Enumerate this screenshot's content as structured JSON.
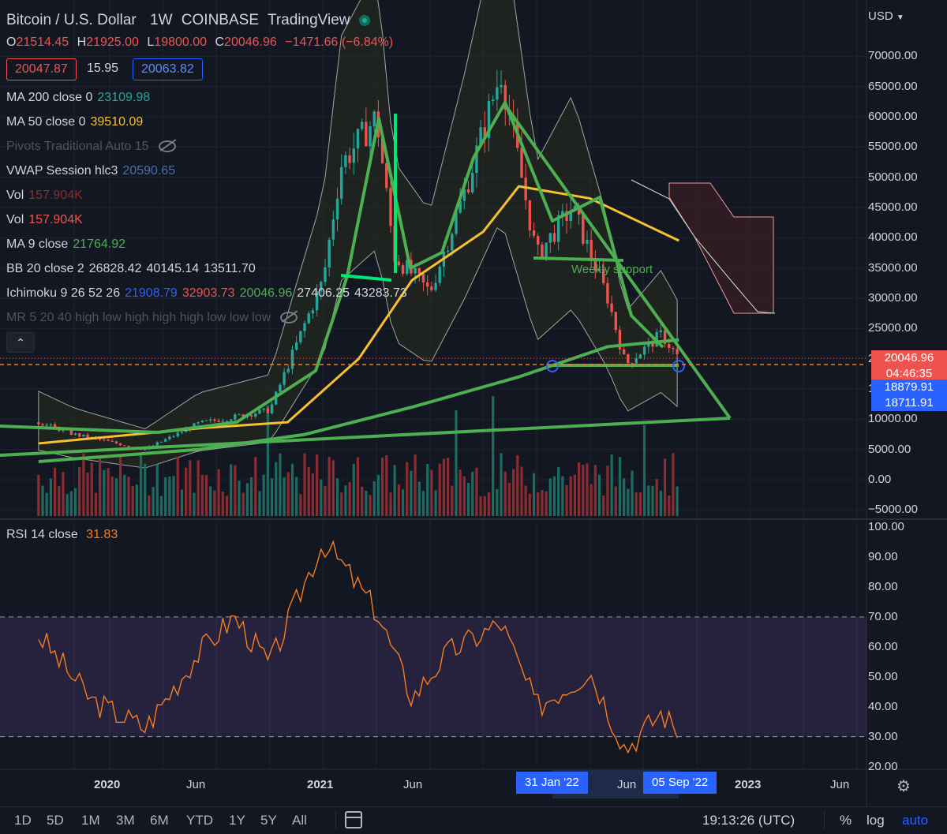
{
  "header": {
    "symbol": "Bitcoin / U.S. Dollar",
    "interval": "1W",
    "exchange": "COINBASE",
    "platform": "TradingView",
    "currency": "USD",
    "ohlc": {
      "o_label": "O",
      "o": "21514.45",
      "h_label": "H",
      "h": "21925.00",
      "l_label": "L",
      "l": "19800.00",
      "c_label": "C",
      "c": "20046.96",
      "change": "−1471.66 (−6.84%)"
    },
    "bid": "20047.87",
    "spread": "15.95",
    "ask": "20063.82"
  },
  "indicators": [
    {
      "name": "MA 200 close 0",
      "values": [
        "23109.98"
      ],
      "colors": [
        "#26a69a"
      ]
    },
    {
      "name": "MA 50 close 0",
      "values": [
        "39510.09"
      ],
      "colors": [
        "#f7c12e"
      ]
    },
    {
      "name": "Pivots Traditional Auto 15",
      "values": [],
      "colors": [],
      "hidden": true
    },
    {
      "name": "VWAP Session hlc3",
      "values": [
        "20590.65"
      ],
      "colors": [
        "#4a6fa5"
      ]
    },
    {
      "name": "Vol",
      "values": [
        "157.904K"
      ],
      "colors": [
        "#8b2c32"
      ]
    },
    {
      "name": "Vol",
      "values": [
        "157.904K"
      ],
      "colors": [
        "#ef5350"
      ]
    },
    {
      "name": "MA 9 close",
      "values": [
        "21764.92"
      ],
      "colors": [
        "#4caf50"
      ]
    },
    {
      "name": "BB 20 close 2",
      "values": [
        "26828.42",
        "40145.14",
        "13511.70"
      ],
      "colors": [
        "#d1d4dc",
        "#d1d4dc",
        "#d1d4dc"
      ]
    },
    {
      "name": "Ichimoku 9 26 52 26",
      "values": [
        "21908.79",
        "32903.73",
        "20046.96",
        "27406.25",
        "43283.73"
      ],
      "colors": [
        "#2962ff",
        "#ef5350",
        "#4caf50",
        "#d1d4dc",
        "#d1d4dc"
      ]
    },
    {
      "name": "MR 5 20 40 high low high high high low low low",
      "values": [],
      "colors": [],
      "hidden": true
    }
  ],
  "annotation": "Weekly support",
  "price_axis": {
    "labels": [
      "70000.00",
      "65000.00",
      "60000.00",
      "55000.00",
      "50000.00",
      "45000.00",
      "40000.00",
      "35000.00",
      "30000.00",
      "25000.00",
      "20000.00",
      "15000.00",
      "10000.00",
      "5000.00",
      "0.00",
      "−5000.00"
    ],
    "last_price": "20046.96",
    "countdown": "04:46:35",
    "tag2": "18879.91",
    "tag3": "18711.91"
  },
  "rsi": {
    "title": "RSI 14 close",
    "value": "31.83",
    "axis_labels": [
      "100.00",
      "90.00",
      "80.00",
      "70.00",
      "60.00",
      "50.00",
      "40.00",
      "30.00",
      "20.00"
    ],
    "upper": 70,
    "lower": 30,
    "line_color": "#f57c20",
    "band_color": "#7e57c2"
  },
  "time_axis": {
    "labels": [
      "2020",
      "Jun",
      "2021",
      "Jun",
      "Jun",
      "2023",
      "Jun"
    ],
    "highlight_start": "31 Jan '22",
    "highlight_end": "05 Sep '22"
  },
  "bottom": {
    "timeframes": [
      "1D",
      "5D",
      "1M",
      "3M",
      "6M",
      "YTD",
      "1Y",
      "5Y",
      "All"
    ],
    "clock": "19:13:26 (UTC)",
    "percent": "%",
    "log": "log",
    "auto": "auto"
  },
  "colors": {
    "background": "#131722",
    "up": "#26a69a",
    "down": "#ef5350",
    "trendline": "#4caf50",
    "ma50": "#f7c12e",
    "bright_green": "#00e676"
  },
  "chart_data": [
    {
      "type": "line",
      "title": "",
      "x_range": [
        "2019-09",
        "2023-08"
      ],
      "ylim": [
        -5000,
        75000
      ],
      "series": [
        {
          "name": "MA 200 close 0",
          "points": [
            [
              "2019-09",
              3000
            ],
            [
              "2020-06",
              5000
            ],
            [
              "2020-12",
              7500
            ],
            [
              "2021-06",
              12000
            ],
            [
              "2021-12",
              17000
            ],
            [
              "2022-05",
              22000
            ],
            [
              "2022-09",
              23110
            ]
          ]
        },
        {
          "name": "MA 50 close 0",
          "points": [
            [
              "2019-09",
              6000
            ],
            [
              "2020-06",
              8500
            ],
            [
              "2020-11",
              9500
            ],
            [
              "2021-03",
              20000
            ],
            [
              "2021-06",
              33000
            ],
            [
              "2021-10",
              41000
            ],
            [
              "2021-12",
              48500
            ],
            [
              "2022-04",
              46500
            ],
            [
              "2022-09",
              39510
            ]
          ]
        }
      ],
      "price_path": [
        [
          "2019-09",
          9500
        ],
        [
          "2019-11",
          7500
        ],
        [
          "2020-03",
          5000
        ],
        [
          "2020-06",
          9300
        ],
        [
          "2020-10",
          11500
        ],
        [
          "2020-12",
          26000
        ],
        [
          "2021-01",
          33000
        ],
        [
          "2021-02",
          52000
        ],
        [
          "2021-04",
          60000
        ],
        [
          "2021-05",
          37000
        ],
        [
          "2021-07",
          31000
        ],
        [
          "2021-09",
          48000
        ],
        [
          "2021-11",
          67500
        ],
        [
          "2022-01",
          37000
        ],
        [
          "2022-03",
          45000
        ],
        [
          "2022-05",
          30000
        ],
        [
          "2022-06",
          19000
        ],
        [
          "2022-08",
          24000
        ],
        [
          "2022-09",
          20047
        ]
      ]
    },
    {
      "type": "line",
      "title": "RSI 14 close",
      "ylim": [
        20,
        100
      ],
      "series": [
        {
          "name": "RSI 14 close",
          "points": [
            [
              "2019-09",
              64
            ],
            [
              "2019-12",
              42
            ],
            [
              "2020-03",
              33
            ],
            [
              "2020-06",
              58
            ],
            [
              "2020-08",
              70
            ],
            [
              "2020-10",
              54
            ],
            [
              "2020-12",
              82
            ],
            [
              "2021-01",
              95
            ],
            [
              "2021-02",
              88
            ],
            [
              "2021-04",
              72
            ],
            [
              "2021-06",
              43
            ],
            [
              "2021-08",
              58
            ],
            [
              "2021-11",
              68
            ],
            [
              "2022-01",
              40
            ],
            [
              "2022-04",
              52
            ],
            [
              "2022-06",
              26
            ],
            [
              "2022-08",
              38
            ],
            [
              "2022-09",
              31.83
            ]
          ]
        }
      ]
    }
  ]
}
